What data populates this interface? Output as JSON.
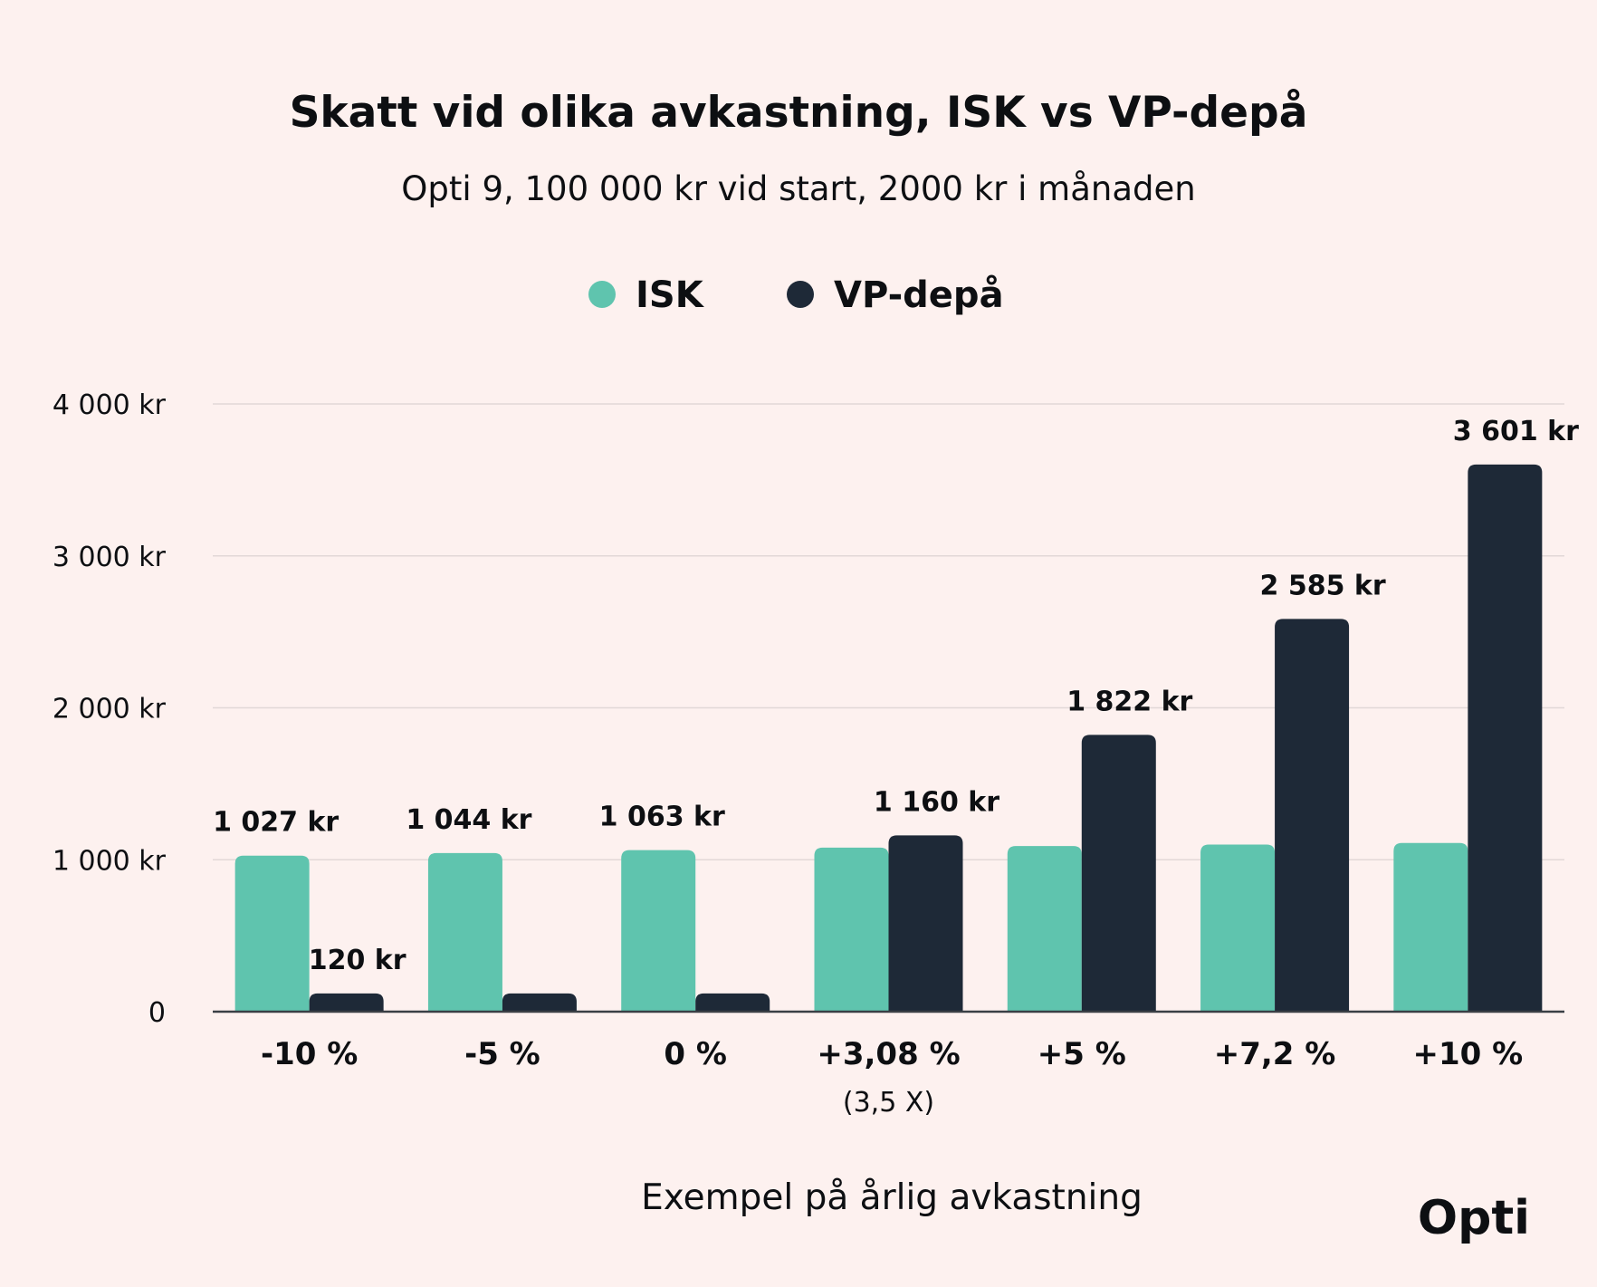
{
  "brand": {
    "logo_text": "Opti"
  },
  "chart_data": {
    "type": "bar",
    "title": "Skatt vid olika avkastning, ISK vs VP-depå",
    "subtitle": "Opti 9, 100 000 kr vid start, 2000 kr i månaden",
    "xlabel": "Exempel på årlig avkastning",
    "ylabel": "",
    "ylim": [
      0,
      4000
    ],
    "yticks": [
      {
        "value": 0,
        "label": "0"
      },
      {
        "value": 1000,
        "label": "1 000 kr"
      },
      {
        "value": 2000,
        "label": "2 000 kr"
      },
      {
        "value": 3000,
        "label": "3 000 kr"
      },
      {
        "value": 4000,
        "label": "4 000 kr"
      }
    ],
    "categories": [
      "-10 %",
      "-5 %",
      "0 %",
      "+3,08 %",
      "+5 %",
      "+7,2 %",
      "+10 %"
    ],
    "category_sublabels": [
      "",
      "",
      "",
      "(3,5 X)",
      "",
      "",
      ""
    ],
    "grid": true,
    "legend_position": "top-center",
    "series": [
      {
        "name": "ISK",
        "color": "#5fc4ae",
        "values": [
          1027,
          1044,
          1063,
          1080,
          1090,
          1100,
          1110
        ],
        "labels": [
          "1 027 kr",
          "1 044 kr",
          "1 063 kr",
          "",
          "",
          "",
          ""
        ]
      },
      {
        "name": "VP-depå",
        "color": "#1e2937",
        "values": [
          120,
          120,
          120,
          1160,
          1822,
          2585,
          3601
        ],
        "labels": [
          "120 kr",
          "",
          "",
          "1 160 kr",
          "1 822 kr",
          "2 585 kr",
          "3 601 kr"
        ]
      }
    ]
  }
}
